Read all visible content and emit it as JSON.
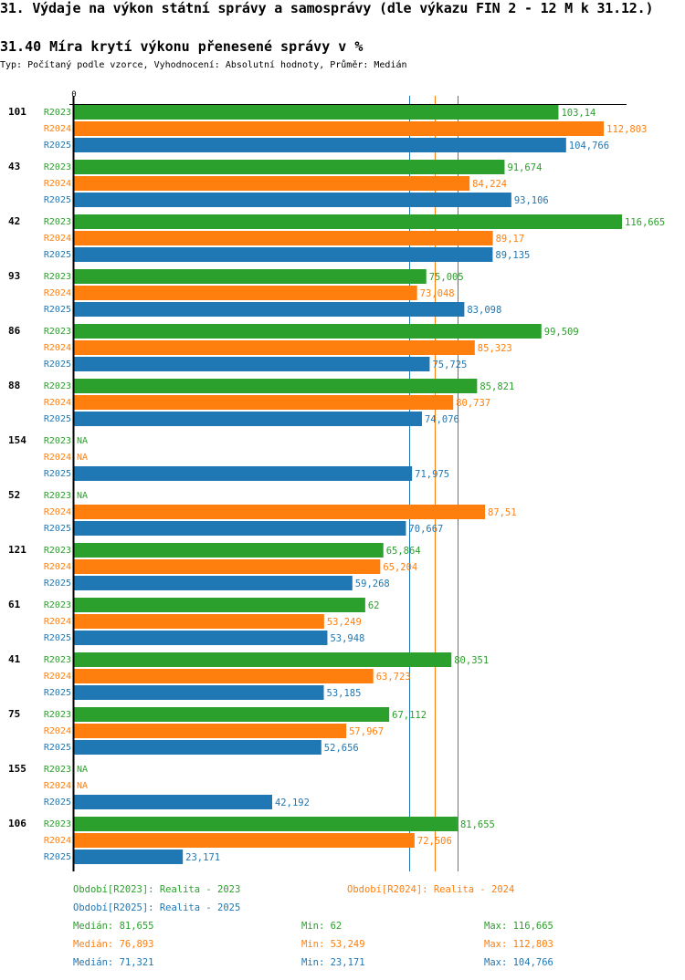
{
  "page": {
    "title": "31. Výdaje na výkon státní správy a samosprávy (dle výkazu FIN 2 - 12 M k 31.12.)",
    "subtitle": "31.40 Míra krytí výkonu přenesené správy v %",
    "meta": "Typ: Počítaný podle vzorce, Vyhodnocení: Absolutní hodnoty, Průměr: Medián"
  },
  "colors": {
    "R2023": "#2ca02c",
    "R2024": "#ff7f0e",
    "R2025": "#1f77b4",
    "axis": "#000000"
  },
  "chart_data": {
    "type": "bar",
    "orientation": "horizontal",
    "title": "31.40 Míra krytí výkonu přenesené správy v %",
    "xlim": [
      0,
      116.665
    ],
    "x_tick_labels": [
      "0"
    ],
    "grid": false,
    "series_names": [
      "R2023",
      "R2024",
      "R2025"
    ],
    "categories": [
      "101",
      "43",
      "42",
      "93",
      "86",
      "88",
      "154",
      "52",
      "121",
      "61",
      "41",
      "75",
      "155",
      "106"
    ],
    "series": [
      {
        "name": "R2023",
        "values": [
          103.14,
          91.674,
          116.665,
          75.005,
          99.509,
          85.821,
          null,
          null,
          65.864,
          62,
          80.351,
          67.112,
          null,
          81.655
        ],
        "labels": [
          "103,14",
          "91,674",
          "116,665",
          "75,005",
          "99,509",
          "85,821",
          "NA",
          "NA",
          "65,864",
          "62",
          "80,351",
          "67,112",
          "NA",
          "81,655"
        ]
      },
      {
        "name": "R2024",
        "values": [
          112.803,
          84.224,
          89.17,
          73.048,
          85.323,
          80.737,
          null,
          87.51,
          65.204,
          53.249,
          63.723,
          57.967,
          null,
          72.506
        ],
        "labels": [
          "112,803",
          "84,224",
          "89,17",
          "73,048",
          "85,323",
          "80,737",
          "NA",
          "87,51",
          "65,204",
          "53,249",
          "63,723",
          "57,967",
          "NA",
          "72,506"
        ]
      },
      {
        "name": "R2025",
        "values": [
          104.766,
          93.106,
          89.135,
          83.098,
          75.725,
          74.076,
          71.975,
          70.667,
          59.268,
          53.948,
          53.185,
          52.656,
          42.192,
          23.171
        ],
        "labels": [
          "104,766",
          "93,106",
          "89,135",
          "83,098",
          "75,725",
          "74,076",
          "71,975",
          "70,667",
          "59,268",
          "53,948",
          "53,185",
          "52,656",
          "42,192",
          "23,171"
        ]
      }
    ],
    "reference_lines": [
      {
        "series": "R2023",
        "type": "median",
        "value": 81.655
      },
      {
        "series": "R2024",
        "type": "median",
        "value": 76.893
      },
      {
        "series": "R2025",
        "type": "median",
        "value": 71.321
      }
    ]
  },
  "legend": {
    "periods": [
      {
        "series": "R2023",
        "text": "Období[R2023]: Realita - 2023"
      },
      {
        "series": "R2024",
        "text": "Období[R2024]: Realita - 2024"
      },
      {
        "series": "R2025",
        "text": "Období[R2025]: Realita - 2025"
      }
    ],
    "stats": [
      {
        "series": "R2023",
        "median": "Medián: 81,655",
        "min": "Min: 62",
        "max": "Max: 116,665"
      },
      {
        "series": "R2024",
        "median": "Medián: 76,893",
        "min": "Min: 53,249",
        "max": "Max: 112,803"
      },
      {
        "series": "R2025",
        "median": "Medián: 71,321",
        "min": "Min: 23,171",
        "max": "Max: 104,766"
      }
    ]
  }
}
